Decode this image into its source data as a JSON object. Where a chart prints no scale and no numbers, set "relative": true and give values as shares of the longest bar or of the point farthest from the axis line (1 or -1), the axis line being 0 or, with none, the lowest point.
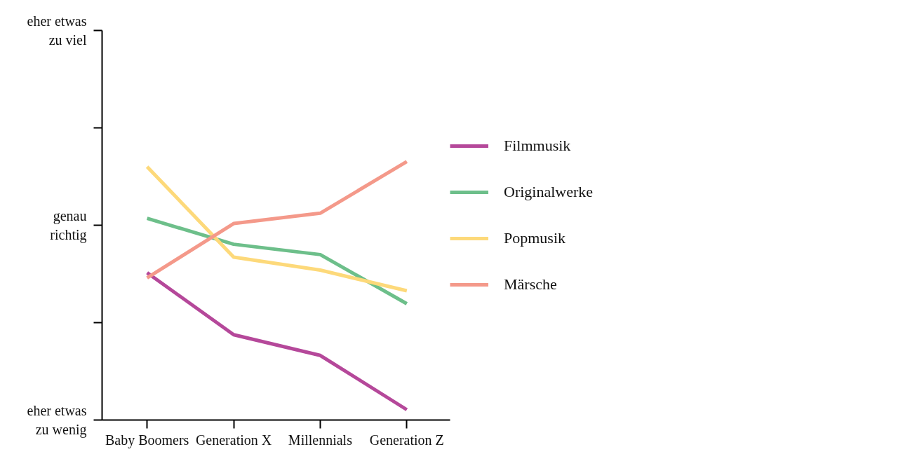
{
  "chart_data": {
    "type": "line",
    "categories": [
      "Baby Boomers",
      "Generation X",
      "Millennials",
      "Generation Z"
    ],
    "series": [
      {
        "name": "Filmmusik",
        "color": "#b5489a",
        "values": [
          0.57,
          0.33,
          0.25,
          0.04
        ]
      },
      {
        "name": "Originalwerke",
        "color": "#6dbf8a",
        "values": [
          0.78,
          0.68,
          0.64,
          0.45
        ]
      },
      {
        "name": "Popmusik",
        "color": "#fdd97a",
        "values": [
          0.98,
          0.63,
          0.58,
          0.5
        ]
      },
      {
        "name": "Märsche",
        "color": "#f4998a",
        "values": [
          0.55,
          0.76,
          0.8,
          1.0
        ]
      }
    ],
    "relative": true,
    "annotations": [
      "eher etwas\nzu viel",
      "genau\nrichtig",
      "eher etwas\nzu wenig"
    ],
    "legend": "right",
    "line_style": "solid"
  }
}
